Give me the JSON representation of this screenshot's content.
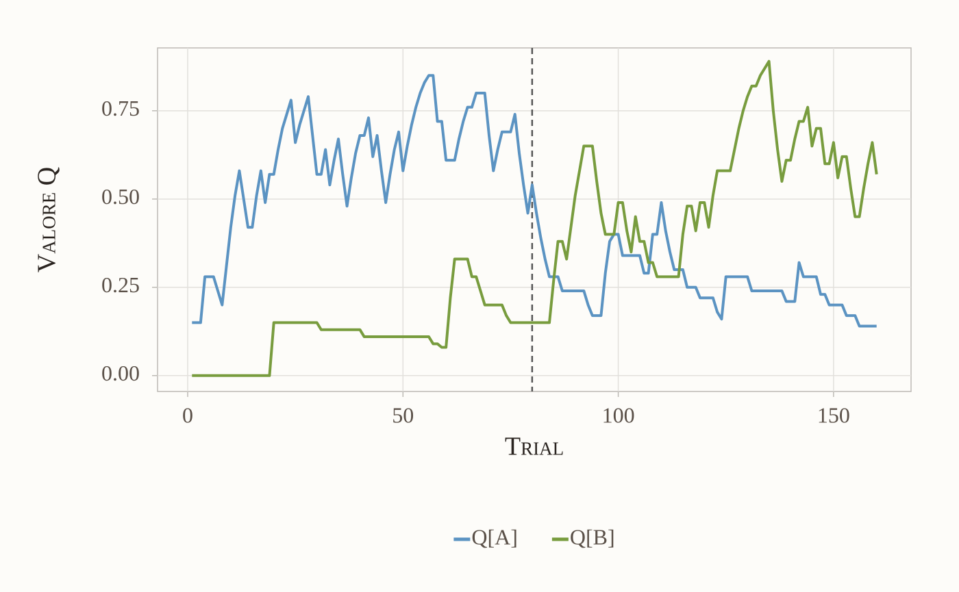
{
  "chart_data": {
    "type": "line",
    "xlabel": "Trial",
    "ylabel": "Valore Q",
    "x": [
      1,
      2,
      3,
      4,
      5,
      6,
      7,
      8,
      9,
      10,
      11,
      12,
      13,
      14,
      15,
      16,
      17,
      18,
      19,
      20,
      21,
      22,
      23,
      24,
      25,
      26,
      27,
      28,
      29,
      30,
      31,
      32,
      33,
      34,
      35,
      36,
      37,
      38,
      39,
      40,
      41,
      42,
      43,
      44,
      45,
      46,
      47,
      48,
      49,
      50,
      51,
      52,
      53,
      54,
      55,
      56,
      57,
      58,
      59,
      60,
      61,
      62,
      63,
      64,
      65,
      66,
      67,
      68,
      69,
      70,
      71,
      72,
      73,
      74,
      75,
      76,
      77,
      78,
      79,
      80,
      81,
      82,
      83,
      84,
      85,
      86,
      87,
      88,
      89,
      90,
      91,
      92,
      93,
      94,
      95,
      96,
      97,
      98,
      99,
      100,
      101,
      102,
      103,
      104,
      105,
      106,
      107,
      108,
      109,
      110,
      111,
      112,
      113,
      114,
      115,
      116,
      117,
      118,
      119,
      120,
      121,
      122,
      123,
      124,
      125,
      126,
      127,
      128,
      129,
      130,
      131,
      132,
      133,
      134,
      135,
      136,
      137,
      138,
      139,
      140,
      141,
      142,
      143,
      144,
      145,
      146,
      147,
      148,
      149,
      150,
      151,
      152,
      153,
      154,
      155,
      156,
      157,
      158,
      159,
      160
    ],
    "series": [
      {
        "name": "Q[A]",
        "color": "#5b93c2",
        "values": [
          0.15,
          0.15,
          0.15,
          0.28,
          0.28,
          0.28,
          0.24,
          0.2,
          0.31,
          0.42,
          0.51,
          0.58,
          0.5,
          0.42,
          0.42,
          0.51,
          0.58,
          0.49,
          0.57,
          0.57,
          0.64,
          0.7,
          0.74,
          0.78,
          0.66,
          0.71,
          0.75,
          0.79,
          0.68,
          0.57,
          0.57,
          0.64,
          0.54,
          0.61,
          0.67,
          0.57,
          0.48,
          0.56,
          0.63,
          0.68,
          0.68,
          0.73,
          0.62,
          0.68,
          0.58,
          0.49,
          0.57,
          0.64,
          0.69,
          0.58,
          0.65,
          0.71,
          0.76,
          0.8,
          0.83,
          0.85,
          0.85,
          0.72,
          0.72,
          0.61,
          0.61,
          0.61,
          0.67,
          0.72,
          0.76,
          0.76,
          0.8,
          0.8,
          0.8,
          0.68,
          0.58,
          0.64,
          0.69,
          0.69,
          0.69,
          0.74,
          0.63,
          0.54,
          0.46,
          0.54,
          0.46,
          0.39,
          0.33,
          0.28,
          0.28,
          0.28,
          0.24,
          0.24,
          0.24,
          0.24,
          0.24,
          0.24,
          0.2,
          0.17,
          0.17,
          0.17,
          0.29,
          0.38,
          0.4,
          0.4,
          0.34,
          0.34,
          0.34,
          0.34,
          0.34,
          0.29,
          0.29,
          0.4,
          0.4,
          0.49,
          0.41,
          0.35,
          0.3,
          0.3,
          0.3,
          0.25,
          0.25,
          0.25,
          0.22,
          0.22,
          0.22,
          0.22,
          0.18,
          0.16,
          0.28,
          0.28,
          0.28,
          0.28,
          0.28,
          0.28,
          0.24,
          0.24,
          0.24,
          0.24,
          0.24,
          0.24,
          0.24,
          0.24,
          0.21,
          0.21,
          0.21,
          0.32,
          0.28,
          0.28,
          0.28,
          0.28,
          0.23,
          0.23,
          0.2,
          0.2,
          0.2,
          0.2,
          0.17,
          0.17,
          0.17,
          0.14,
          0.14,
          0.14,
          0.14,
          0.14
        ]
      },
      {
        "name": "Q[B]",
        "color": "#789c3e",
        "values": [
          0,
          0,
          0,
          0,
          0,
          0,
          0,
          0,
          0,
          0,
          0,
          0,
          0,
          0,
          0,
          0,
          0,
          0,
          0,
          0.15,
          0.15,
          0.15,
          0.15,
          0.15,
          0.15,
          0.15,
          0.15,
          0.15,
          0.15,
          0.15,
          0.13,
          0.13,
          0.13,
          0.13,
          0.13,
          0.13,
          0.13,
          0.13,
          0.13,
          0.13,
          0.11,
          0.11,
          0.11,
          0.11,
          0.11,
          0.11,
          0.11,
          0.11,
          0.11,
          0.11,
          0.11,
          0.11,
          0.11,
          0.11,
          0.11,
          0.11,
          0.09,
          0.09,
          0.08,
          0.08,
          0.22,
          0.33,
          0.33,
          0.33,
          0.33,
          0.28,
          0.28,
          0.24,
          0.2,
          0.2,
          0.2,
          0.2,
          0.2,
          0.17,
          0.15,
          0.15,
          0.15,
          0.15,
          0.15,
          0.15,
          0.15,
          0.15,
          0.15,
          0.15,
          0.27,
          0.38,
          0.38,
          0.33,
          0.42,
          0.51,
          0.58,
          0.65,
          0.65,
          0.65,
          0.55,
          0.46,
          0.4,
          0.4,
          0.4,
          0.49,
          0.49,
          0.41,
          0.35,
          0.45,
          0.38,
          0.38,
          0.32,
          0.32,
          0.28,
          0.28,
          0.28,
          0.28,
          0.28,
          0.28,
          0.4,
          0.48,
          0.48,
          0.41,
          0.49,
          0.49,
          0.42,
          0.51,
          0.58,
          0.58,
          0.58,
          0.58,
          0.64,
          0.7,
          0.75,
          0.79,
          0.82,
          0.82,
          0.85,
          0.87,
          0.89,
          0.75,
          0.64,
          0.55,
          0.61,
          0.61,
          0.67,
          0.72,
          0.72,
          0.76,
          0.65,
          0.7,
          0.7,
          0.6,
          0.6,
          0.66,
          0.56,
          0.62,
          0.62,
          0.53,
          0.45,
          0.45,
          0.53,
          0.6,
          0.66,
          0.57
        ]
      }
    ],
    "xlim": [
      -7,
      168
    ],
    "xticks": [
      0,
      50,
      100,
      150
    ],
    "ylim": [
      -0.045,
      0.928
    ],
    "yticks": [
      {
        "value": 0,
        "label": "0.00"
      },
      0.25,
      {
        "value": 0.5,
        "label": "0.50"
      },
      0.75
    ],
    "vline": 80,
    "grid": true,
    "legend": "bottom"
  }
}
